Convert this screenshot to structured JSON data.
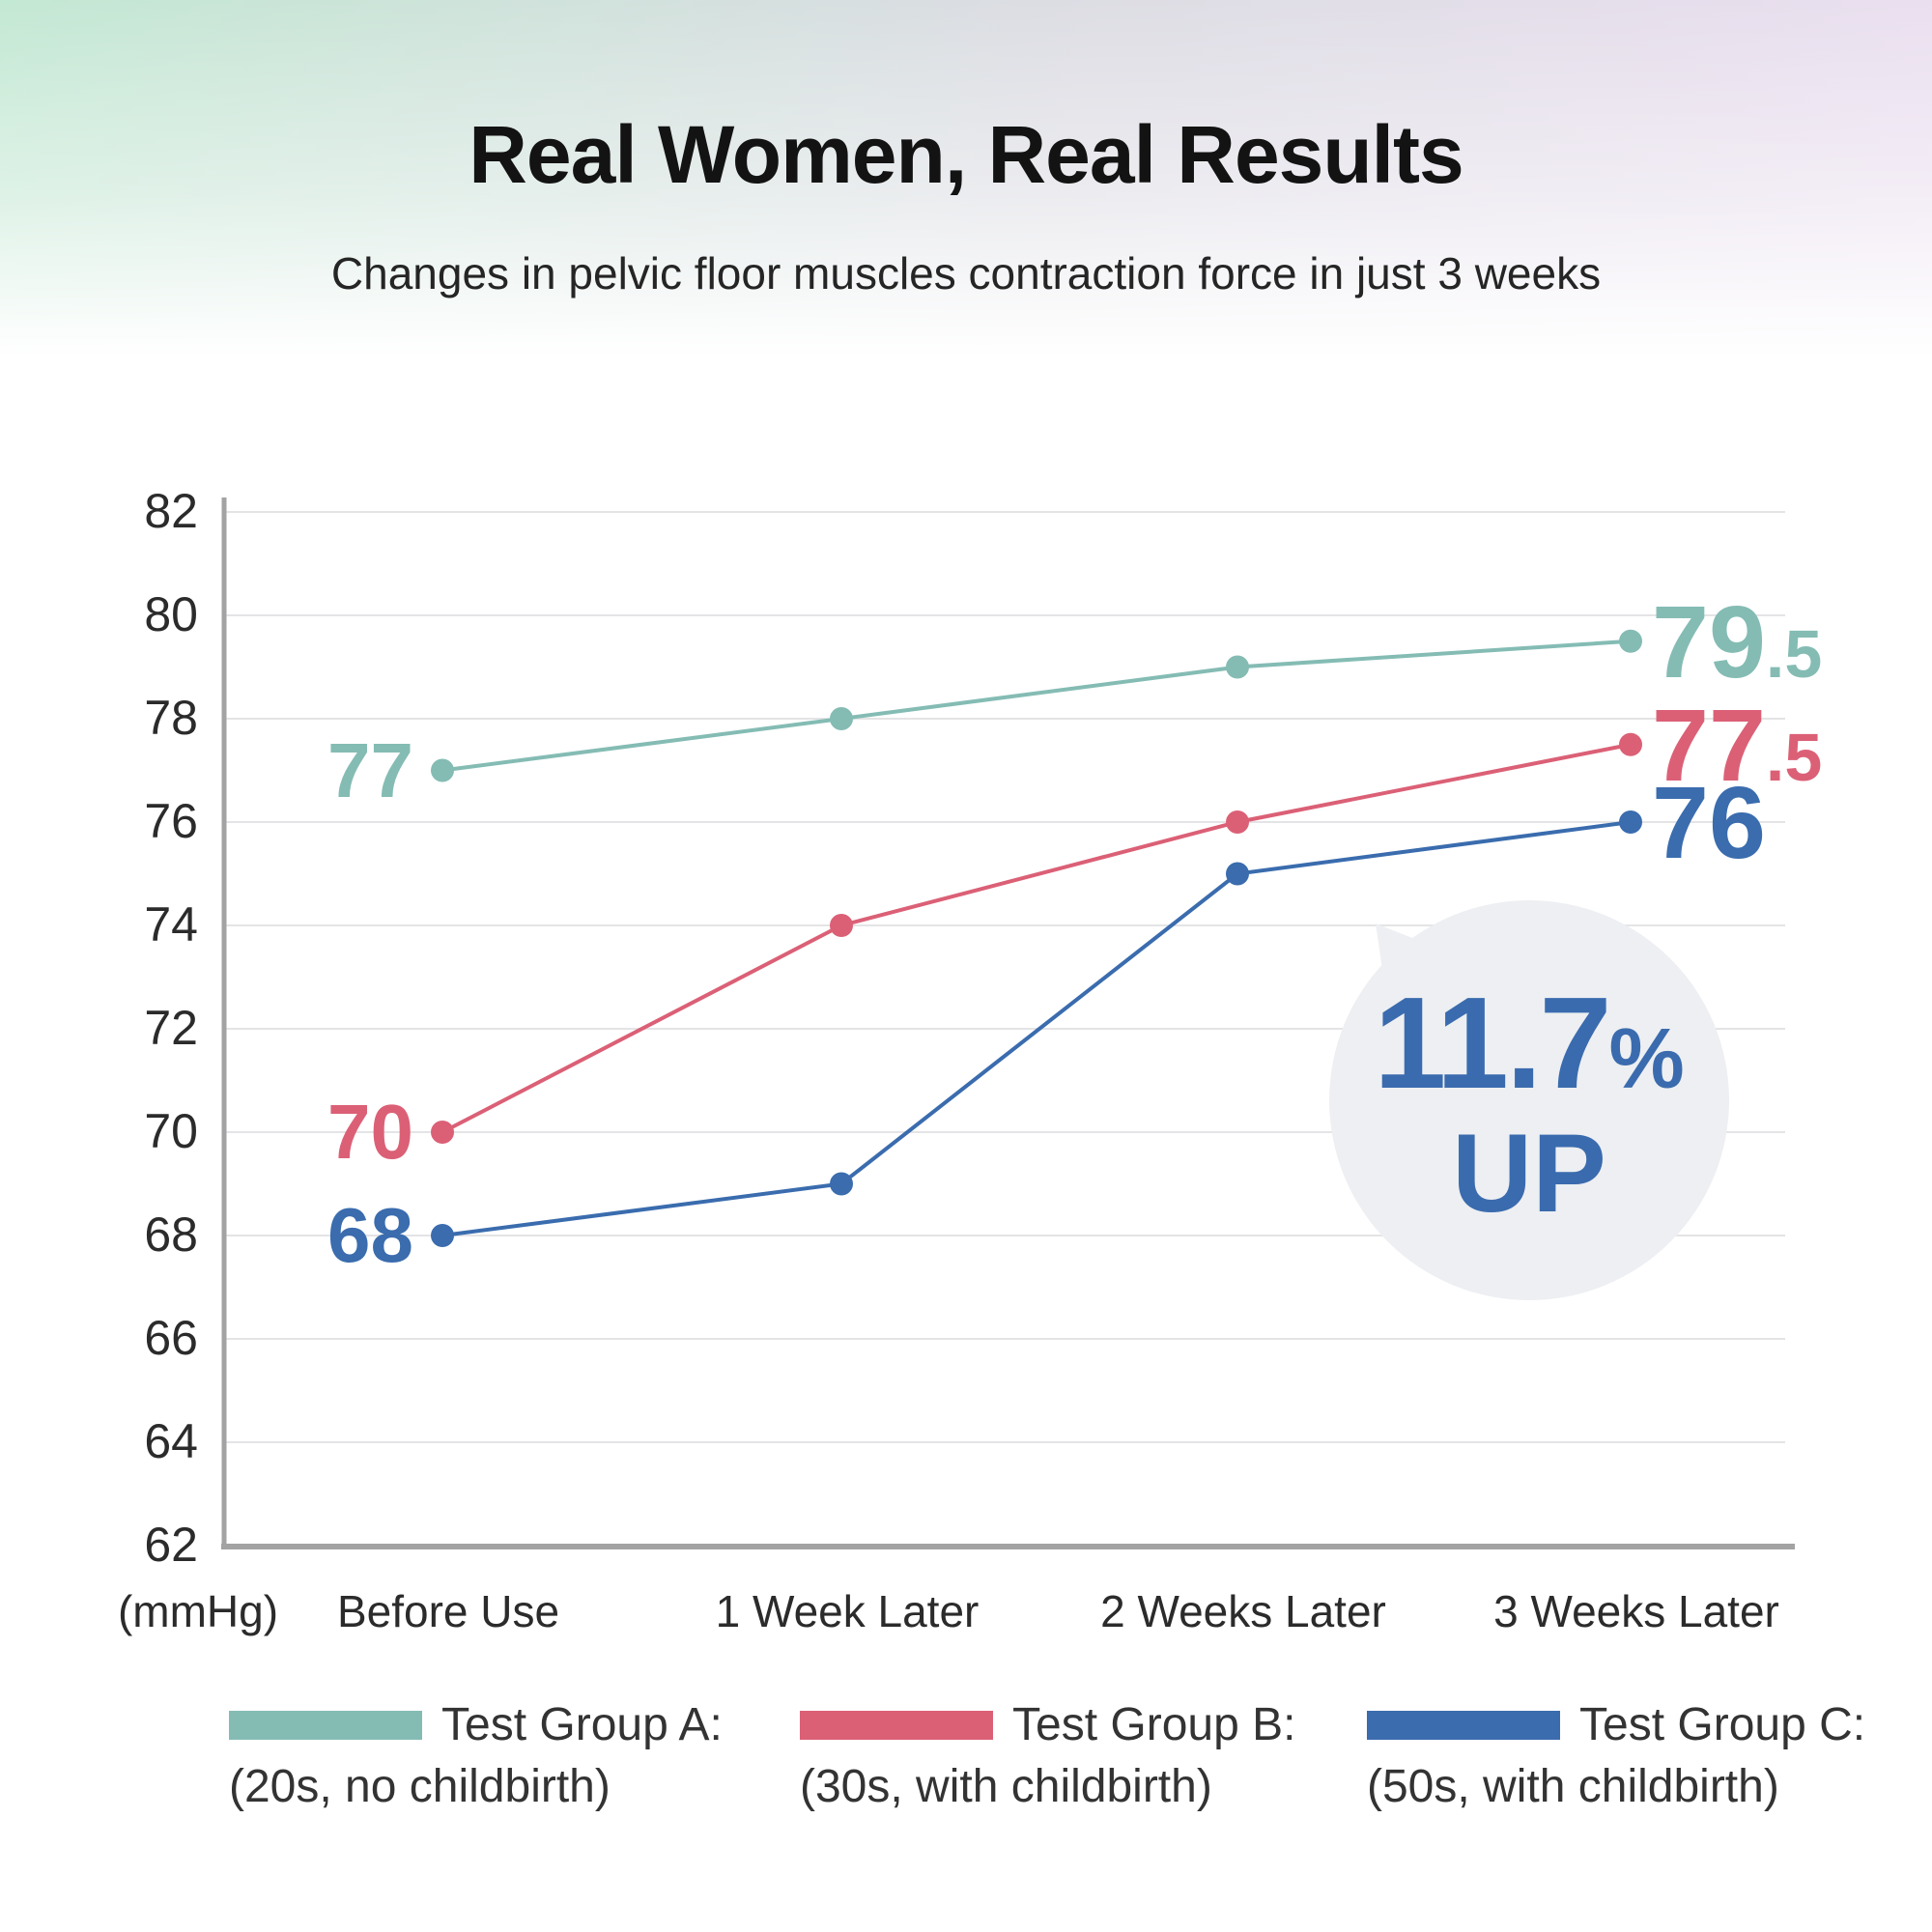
{
  "header": {
    "title": "Real Women, Real Results",
    "subtitle": "Changes in pelvic floor muscles contraction force in just 3 weeks"
  },
  "chart_data": {
    "type": "line",
    "unit_label": "(mmHg)",
    "categories": [
      "Before Use",
      "1 Week Later",
      "2 Weeks Later",
      "3 Weeks Later"
    ],
    "y_ticks": [
      82,
      80,
      78,
      76,
      74,
      72,
      70,
      68,
      66,
      64,
      62
    ],
    "ylim": [
      62,
      82
    ],
    "grid": "horizontal",
    "legend_position": "bottom",
    "series": [
      {
        "name": "Test Group A:",
        "description": "(20s, no childbirth)",
        "color": "#84BCB4",
        "values": [
          77,
          78,
          79,
          79.5
        ],
        "start_label": "77",
        "end_label_main": "79",
        "end_label_suffix": ".5"
      },
      {
        "name": "Test Group B:",
        "description": "(30s, with childbirth)",
        "color": "#DB6076",
        "values": [
          70,
          74,
          76,
          77.5
        ],
        "start_label": "70",
        "end_label_main": "77",
        "end_label_suffix": ".5"
      },
      {
        "name": "Test Group C:",
        "description": "(50s, with childbirth)",
        "color": "#3A6CAE",
        "values": [
          68,
          69,
          75,
          76
        ],
        "start_label": "68",
        "end_label_main": "76",
        "end_label_suffix": ""
      }
    ],
    "annotation": {
      "value": "11.7",
      "percent_sign": "%",
      "direction": "UP",
      "bg_color": "#EDEFF2",
      "text_color": "#3A6BAE"
    }
  },
  "colors": {
    "gridline": "#E4E4E6",
    "axis": "#A3A3A3",
    "tick_text": "#2B2B2B",
    "title": "#131313",
    "header_gradient_left": "#C3E8D3",
    "header_gradient_mid": "#DCDDE3",
    "header_gradient_right": "#EBDFF0"
  }
}
